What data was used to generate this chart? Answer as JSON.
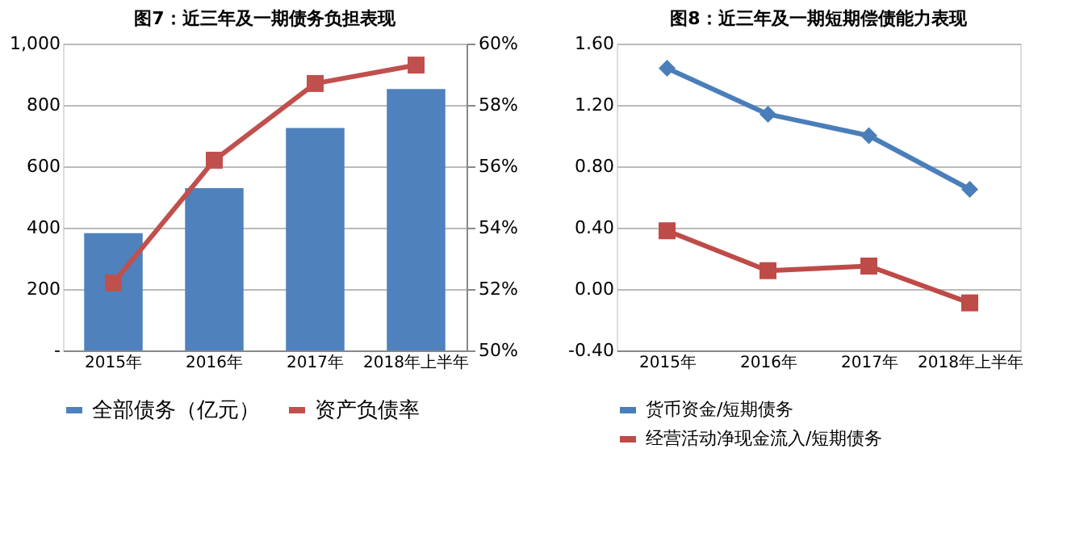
{
  "chart_data": [
    {
      "type": "bar",
      "title": "图7：近三年及一期债务负担表现",
      "categories": [
        "2015年",
        "2016年",
        "2017年",
        "2018年上半年"
      ],
      "series": [
        {
          "name": "全部债务（亿元）",
          "type": "bar",
          "color": "#4f81bd",
          "values": [
            382,
            529,
            725,
            852
          ]
        },
        {
          "name": "资产负债率",
          "type": "line",
          "axis": "y2",
          "marker": "square",
          "color": "#c0504d",
          "values": [
            52.2,
            56.2,
            58.7,
            59.3
          ]
        }
      ],
      "ylim": [
        0,
        1000
      ],
      "yticks": [
        {
          "value": 0,
          "label": "-"
        },
        200,
        400,
        600,
        800,
        {
          "value": 1000,
          "label": "1,000"
        }
      ],
      "y2lim": [
        50,
        60
      ],
      "y2ticks": [
        {
          "value": 50,
          "label": "50%"
        },
        {
          "value": 52,
          "label": "52%"
        },
        {
          "value": 54,
          "label": "54%"
        },
        {
          "value": 56,
          "label": "56%"
        },
        {
          "value": 58,
          "label": "58%"
        },
        {
          "value": 60,
          "label": "60%"
        }
      ],
      "grid": "y",
      "legend": "bottom"
    },
    {
      "type": "line",
      "title": "图8：近三年及一期短期偿债能力表现",
      "categories": [
        "2015年",
        "2016年",
        "2017年",
        "2018年上半年"
      ],
      "series": [
        {
          "name": "货币资金/短期债务",
          "marker": "diamond",
          "color": "#4a7ebb",
          "values": [
            1.44,
            1.14,
            1.0,
            0.65
          ]
        },
        {
          "name": "经营活动净现金流入/短期债务",
          "marker": "square",
          "color": "#be4b48",
          "values": [
            0.38,
            0.12,
            0.15,
            -0.09
          ]
        }
      ],
      "ylim": [
        -0.4,
        1.6
      ],
      "yticks": [
        {
          "value": -0.4,
          "label": "-0.40"
        },
        {
          "value": 0,
          "label": "0.00"
        },
        {
          "value": 0.4,
          "label": "0.40"
        },
        {
          "value": 0.8,
          "label": "0.80"
        },
        {
          "value": 1.2,
          "label": "1.20"
        },
        {
          "value": 1.6,
          "label": "1.60"
        }
      ],
      "grid": "y",
      "legend": "bottom"
    }
  ]
}
